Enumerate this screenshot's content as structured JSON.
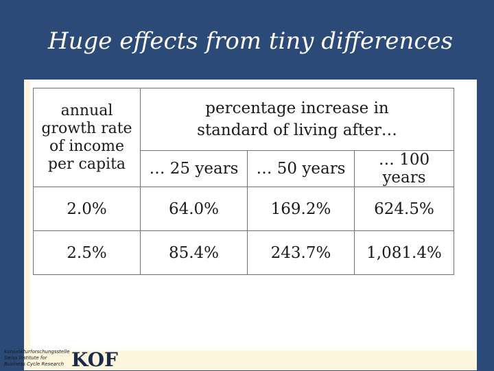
{
  "slide": {
    "title": "Huge effects from tiny differences"
  },
  "table": {
    "income_header_lines": [
      "annual",
      "growth rate",
      "of income",
      "per capita"
    ],
    "increase_header_lines": [
      "percentage increase in",
      "standard of living after…"
    ],
    "year_headers": [
      "… 25 years",
      "… 50 years",
      "… 100 years"
    ],
    "rows": [
      {
        "rate": "2.0%",
        "values": [
          "64.0%",
          "169.2%",
          "624.5%"
        ]
      },
      {
        "rate": "2.5%",
        "values": [
          "85.4%",
          "243.7%",
          "1,081.4%"
        ]
      }
    ]
  },
  "footer": {
    "lines": [
      "Konjunkturforschungsstelle",
      "Swiss Institute for",
      "Business Cycle Research"
    ],
    "logo": "KOF"
  },
  "colors": {
    "background": "#2b4a78",
    "panel": "#fdf6dd",
    "title_text": "#ffffff"
  }
}
